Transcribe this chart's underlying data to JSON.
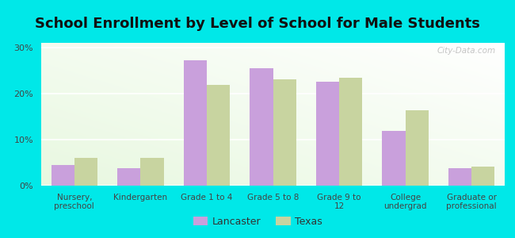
{
  "title": "School Enrollment by Level of School for Male Students",
  "categories": [
    "Nursery,\npreschool",
    "Kindergarten",
    "Grade 1 to 4",
    "Grade 5 to 8",
    "Grade 9 to\n12",
    "College\nundergrad",
    "Graduate or\nprofessional"
  ],
  "lancaster": [
    4.5,
    3.8,
    27.2,
    25.5,
    22.5,
    11.8,
    3.8
  ],
  "texas": [
    6.0,
    6.0,
    21.8,
    23.0,
    23.5,
    16.3,
    4.2
  ],
  "lancaster_color": "#c9a0dc",
  "texas_color": "#c8d4a0",
  "background_color": "#00e8e8",
  "grad_color_topleft": "#e8f8e0",
  "grad_color_bottomright": "#ffffff",
  "ylabel_ticks": [
    "0%",
    "10%",
    "20%",
    "30%"
  ],
  "yticks": [
    0,
    10,
    20,
    30
  ],
  "ylim": [
    0,
    31
  ],
  "legend_labels": [
    "Lancaster",
    "Texas"
  ],
  "title_fontsize": 13,
  "watermark": "City-Data.com",
  "bar_width": 0.35
}
